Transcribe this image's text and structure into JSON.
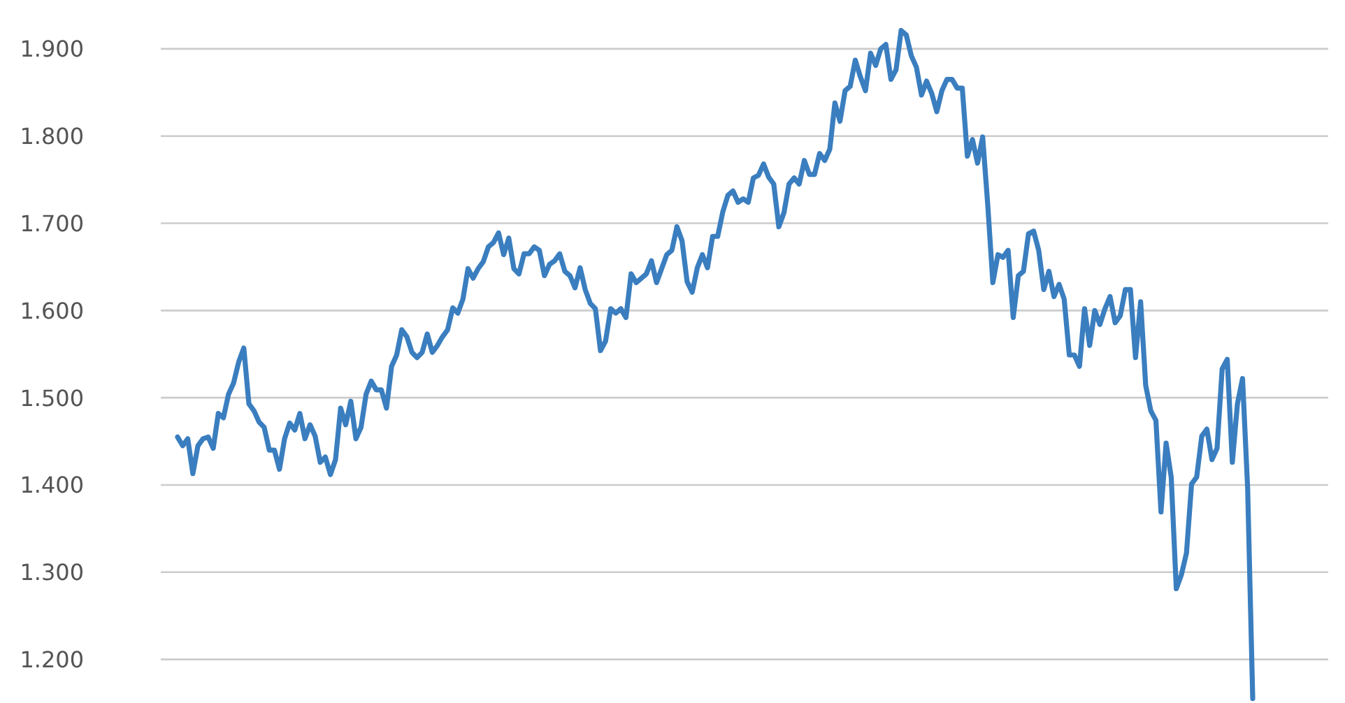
{
  "chart_data": {
    "type": "line",
    "categories": [
      null,
      null,
      null,
      null,
      null,
      null,
      null,
      null,
      null,
      null,
      null,
      null,
      null,
      null,
      null,
      null,
      null,
      null,
      null,
      null,
      null,
      null,
      null,
      null,
      null,
      null,
      null,
      null,
      null,
      null,
      null,
      null,
      null,
      null,
      null,
      null,
      null,
      null,
      null,
      null,
      null,
      null,
      null,
      null,
      null,
      null,
      null,
      null,
      null,
      null,
      null,
      null,
      null,
      null,
      null,
      null,
      null,
      null,
      null,
      null,
      null,
      null,
      null,
      null,
      null,
      null,
      null,
      null,
      null,
      null,
      null,
      null,
      null,
      null,
      null,
      null,
      null,
      null,
      null,
      null,
      null,
      null,
      null,
      null,
      null,
      null,
      null,
      null,
      null,
      null,
      null,
      null,
      null,
      null,
      null,
      null,
      null,
      null,
      null,
      null,
      null,
      null,
      null,
      null,
      null,
      null,
      null,
      null,
      null,
      null,
      null,
      null,
      null,
      null,
      null,
      null,
      null,
      null,
      null,
      null,
      null,
      null,
      null,
      null,
      null,
      null,
      null,
      null,
      null,
      null,
      null,
      null,
      null,
      null,
      null,
      null,
      null,
      null,
      null,
      null,
      null,
      null,
      null,
      null,
      null,
      null,
      null,
      null,
      null,
      null,
      null,
      null,
      null,
      null,
      null,
      null,
      null,
      null,
      null,
      null,
      null,
      null,
      null,
      null,
      null,
      null,
      null,
      null,
      null,
      null,
      null,
      null,
      null,
      null,
      null,
      null,
      null,
      null,
      null,
      null,
      null,
      null,
      null,
      null,
      null,
      null,
      null,
      null,
      null,
      null,
      null,
      null,
      null,
      null,
      null,
      null,
      null,
      null,
      null,
      null,
      null,
      null,
      null,
      null,
      null,
      null,
      null,
      null,
      null,
      null,
      null,
      null
    ],
    "series": [
      {
        "color": "#3a7ebf",
        "values": [
          1455,
          1445,
          1453,
          1413,
          1445,
          1453,
          1455,
          1442,
          1482,
          1477,
          1504,
          1517,
          1541,
          1557,
          1493,
          1485,
          1472,
          1466,
          1440,
          1440,
          1418,
          1453,
          1471,
          1463,
          1482,
          1453,
          1469,
          1456,
          1426,
          1432,
          1412,
          1429,
          1488,
          1469,
          1496,
          1453,
          1466,
          1504,
          1519,
          1509,
          1509,
          1488,
          1536,
          1549,
          1578,
          1570,
          1552,
          1546,
          1552,
          1573,
          1552,
          1560,
          1570,
          1578,
          1603,
          1597,
          1613,
          1648,
          1637,
          1648,
          1656,
          1673,
          1678,
          1689,
          1664,
          1683,
          1648,
          1642,
          1665,
          1665,
          1673,
          1669,
          1640,
          1653,
          1657,
          1665,
          1645,
          1640,
          1626,
          1649,
          1624,
          1608,
          1602,
          1554,
          1565,
          1602,
          1597,
          1602,
          1592,
          1642,
          1632,
          1637,
          1642,
          1657,
          1632,
          1648,
          1664,
          1669,
          1696,
          1680,
          1633,
          1621,
          1649,
          1664,
          1649,
          1685,
          1685,
          1713,
          1732,
          1737,
          1724,
          1728,
          1724,
          1752,
          1755,
          1768,
          1753,
          1745,
          1696,
          1712,
          1745,
          1752,
          1745,
          1772,
          1756,
          1756,
          1780,
          1772,
          1785,
          1838,
          1817,
          1852,
          1857,
          1887,
          1868,
          1852,
          1895,
          1881,
          1900,
          1905,
          1865,
          1876,
          1921,
          1916,
          1892,
          1879,
          1847,
          1863,
          1849,
          1828,
          1852,
          1865,
          1865,
          1855,
          1855,
          1777,
          1796,
          1769,
          1799,
          1721,
          1632,
          1664,
          1661,
          1669,
          1592,
          1640,
          1645,
          1688,
          1691,
          1669,
          1624,
          1645,
          1616,
          1630,
          1613,
          1549,
          1549,
          1536,
          1602,
          1560,
          1600,
          1584,
          1602,
          1616,
          1586,
          1594,
          1624,
          1624,
          1546,
          1610,
          1514,
          1485,
          1474,
          1369,
          1448,
          1409,
          1281,
          1297,
          1322,
          1401,
          1409,
          1456,
          1464,
          1429,
          1442,
          1533,
          1544,
          1426,
          1493,
          1522,
          1397,
          1155
        ]
      }
    ],
    "ylim": [
      1150,
      1956
    ],
    "yticks": [
      {
        "value": 1200,
        "label": "1.200"
      },
      {
        "value": 1300,
        "label": "1.300"
      },
      {
        "value": 1400,
        "label": "1.400"
      },
      {
        "value": 1500,
        "label": "1.500"
      },
      {
        "value": 1600,
        "label": "1.600"
      },
      {
        "value": 1700,
        "label": "1.700"
      },
      {
        "value": 1800,
        "label": "1.800"
      },
      {
        "value": 1900,
        "label": "1.900"
      }
    ],
    "grid": "y",
    "marker": "none",
    "line_style": "solid"
  }
}
